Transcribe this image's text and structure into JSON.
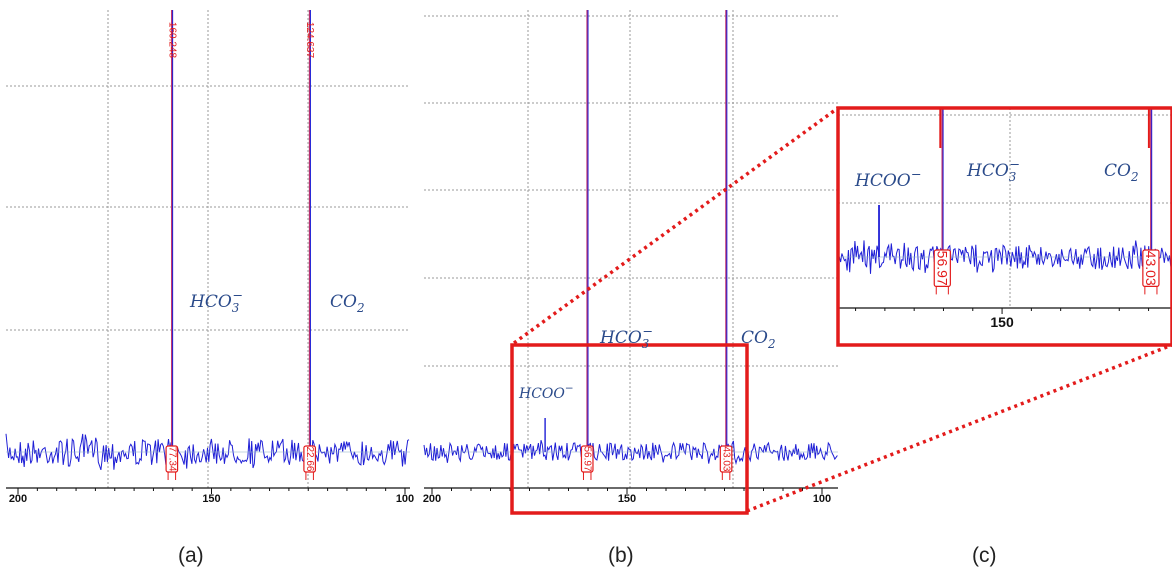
{
  "panels": [
    {
      "caption": "(a)",
      "x_ticks": [
        "200",
        "150",
        "100"
      ],
      "species_labels": [
        {
          "base": "HCO",
          "sub": "3",
          "sup": "−"
        },
        {
          "base": "CO",
          "sub": "2",
          "sup": ""
        }
      ],
      "integrals": [
        "77.34",
        "22.66"
      ],
      "peak_labels": [
        "160.248",
        "124.637"
      ]
    },
    {
      "caption": "(b)",
      "x_ticks": [
        "200",
        "150",
        "100"
      ],
      "species_labels": [
        {
          "base": "HCOO",
          "sub": "",
          "sup": "−"
        },
        {
          "base": "HCO",
          "sub": "3",
          "sup": "−"
        },
        {
          "base": "CO",
          "sub": "2",
          "sup": ""
        }
      ],
      "integrals": [
        "56.97",
        "43.03"
      ]
    },
    {
      "caption": "(c)",
      "x_ticks": [
        "150"
      ],
      "species_labels": [
        {
          "base": "HCOO",
          "sub": "",
          "sup": "−"
        },
        {
          "base": "HCO",
          "sub": "3",
          "sup": "−"
        },
        {
          "base": "CO",
          "sub": "2",
          "sup": ""
        }
      ],
      "integrals": [
        "56.97",
        "43.03"
      ]
    }
  ],
  "colors": {
    "spectrum": "#1f1fd6",
    "peak_line": "#c0306a",
    "highlight": "#e31b1b",
    "label": "#2a4a8a",
    "grid": "#9a9a9a"
  },
  "chart_data": [
    {
      "type": "line",
      "panel": "(a)",
      "x_axis": {
        "reversed": true,
        "xlim": [
          200,
          100
        ],
        "ticks": [
          200,
          150,
          100
        ]
      },
      "peaks": [
        {
          "species": "HCO3-",
          "x": 160.248,
          "integral": 77.34,
          "peak_label": "160.248"
        },
        {
          "species": "CO2",
          "x": 124.637,
          "integral": 22.66,
          "peak_label": "124.637"
        }
      ],
      "grid": true
    },
    {
      "type": "line",
      "panel": "(b)",
      "x_axis": {
        "reversed": true,
        "xlim": [
          200,
          100
        ],
        "ticks": [
          200,
          150,
          100
        ]
      },
      "peaks": [
        {
          "species": "HCOO-",
          "x": 171,
          "height": "small"
        },
        {
          "species": "HCO3-",
          "x": 160.2,
          "integral": 56.97
        },
        {
          "species": "CO2",
          "x": 124.6,
          "integral": 43.03
        }
      ],
      "zoom_region": {
        "xlim": [
          180,
          118
        ]
      },
      "grid": true
    },
    {
      "type": "line",
      "panel": "(c)",
      "x_axis": {
        "reversed": true,
        "xlim": [
          178,
          121
        ],
        "ticks": [
          150
        ]
      },
      "peaks": [
        {
          "species": "HCOO-",
          "x": 171
        },
        {
          "species": "HCO3-",
          "x": 160.2,
          "integral": 56.97
        },
        {
          "species": "CO2",
          "x": 124.6,
          "integral": 43.03
        }
      ],
      "grid": true
    }
  ]
}
